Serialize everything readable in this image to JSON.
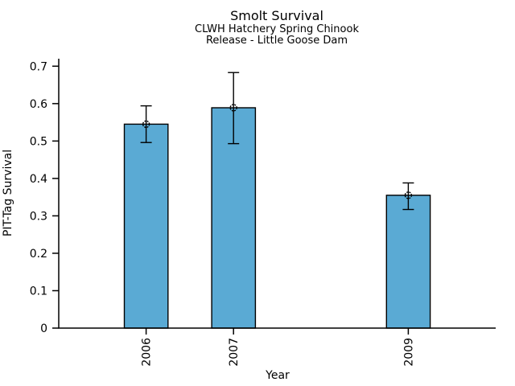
{
  "chart_data": {
    "type": "bar",
    "title": "Smolt Survival",
    "subtitle_line1": "CLWH Hatchery Spring Chinook",
    "subtitle_line2": "Release - Little Goose Dam",
    "xlabel": "Year",
    "ylabel": "PIT-Tag Survival",
    "categories": [
      "2006",
      "2007",
      "2009"
    ],
    "x_values": [
      2006,
      2007,
      2009
    ],
    "xlim": [
      2005,
      2010
    ],
    "values": [
      0.545,
      0.589,
      0.355
    ],
    "error_low": [
      0.496,
      0.493,
      0.317
    ],
    "error_high": [
      0.594,
      0.683,
      0.388
    ],
    "ytick_labels": [
      "0",
      "0.1",
      "0.2",
      "0.3",
      "0.4",
      "0.5",
      "0.6",
      "0.7"
    ],
    "ytick_values": [
      0,
      0.1,
      0.2,
      0.3,
      0.4,
      0.5,
      0.6,
      0.7
    ],
    "ylim": [
      0,
      0.72
    ],
    "bar_width_years": 0.5,
    "marker": "open-circle",
    "grid": "off",
    "legend": "none",
    "colors": {
      "bar_fill": "#5AAAD4",
      "bar_edge": "#000000",
      "error_bar": "#000000",
      "axis": "#000000",
      "text": "#000000",
      "background": "#FFFFFF"
    }
  }
}
